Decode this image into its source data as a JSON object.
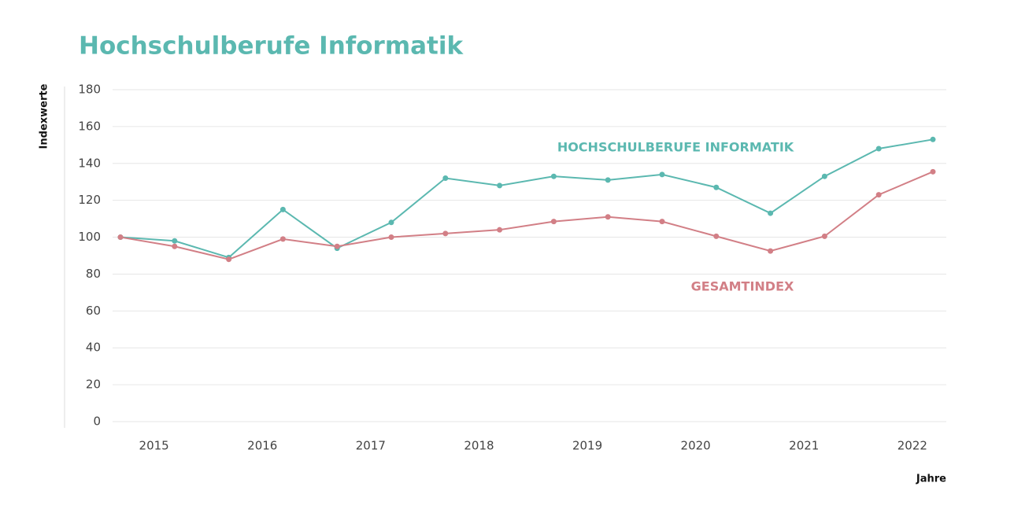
{
  "chart_data": {
    "type": "line",
    "title": "Hochschulberufe Informatik",
    "y_label": "Indexwerte",
    "x_label": "Jahre",
    "categories": [
      "2015",
      null,
      "2016",
      null,
      "2017",
      null,
      "2018",
      null,
      "2019",
      null,
      "2020",
      null,
      "2021",
      null,
      "2022",
      null
    ],
    "series": [
      {
        "name": "HOCHSCHULBERUFE INFORMATIK",
        "color": "#5bb8b0",
        "values": [
          100,
          98,
          89,
          115,
          94,
          108,
          132,
          128,
          133,
          131,
          134,
          127,
          113,
          133,
          148,
          153
        ]
      },
      {
        "name": "GESAMTINDEX",
        "color": "#d27f86",
        "values": [
          100,
          95,
          88,
          99,
          95,
          100,
          102,
          104,
          108.5,
          111,
          108.5,
          100.5,
          92.5,
          100.5,
          123,
          135.5
        ]
      }
    ],
    "ylim": [
      0,
      180
    ],
    "yticks": [
      0,
      20,
      40,
      60,
      80,
      100,
      120,
      140,
      160,
      180
    ],
    "grid": true
  }
}
